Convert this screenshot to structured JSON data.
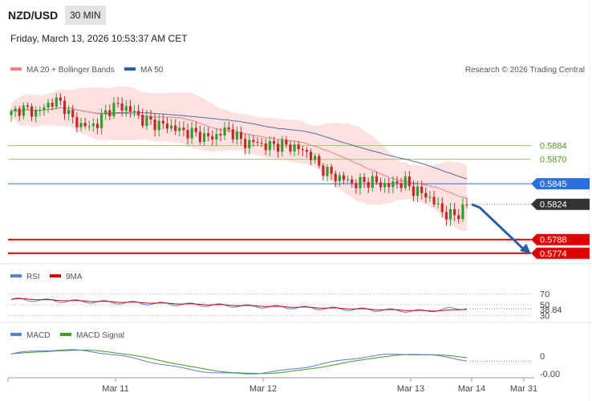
{
  "header": {
    "pair": "NZD/USD",
    "timeframe": "30 MIN",
    "datetime": "Friday, March 13, 2026 10:53:37 AM CET"
  },
  "legend": {
    "ma20": "MA 20 + Bollinger Bands",
    "ma50": "MA 50",
    "copyright": "Research © 2026 Trading Central",
    "rsi": "RSI",
    "rsi_ma": "9MA",
    "macd": "MACD",
    "macd_signal": "MACD Signal"
  },
  "colors": {
    "ma20": "#f08080",
    "ma50": "#4a6fa5",
    "bollinger_fill": "#fde0e0",
    "candle_up": "#2e9e2e",
    "candle_down": "#c62828",
    "resistance": "#9acd6a",
    "current": "#2b6fe0",
    "support": "#e00000",
    "arrow": "#2a5ea8",
    "rsi": "#5b7fd1",
    "rsi_ma": "#cc0000",
    "macd": "#5b7fd1",
    "macd_signal": "#3c9e1e"
  },
  "chart_data": [
    {
      "type": "candlestick",
      "title": "NZD/USD 30 MIN",
      "x_tick_labels": [
        "Mar 11",
        "Mar 12",
        "Mar 13",
        "Mar 14",
        "Mar 31"
      ],
      "levels": [
        {
          "value": 0.5884,
          "label": "0.5884",
          "kind": "resistance"
        },
        {
          "value": 0.587,
          "label": "0.5870",
          "kind": "resistance"
        },
        {
          "value": 0.5845,
          "label": "0.5845",
          "kind": "pivot"
        },
        {
          "value": 0.5824,
          "label": "0.5824",
          "kind": "last"
        },
        {
          "value": 0.5788,
          "label": "0.5788",
          "kind": "support"
        },
        {
          "value": 0.5774,
          "label": "0.5774",
          "kind": "support"
        }
      ],
      "ylim": [
        0.5764,
        0.5954
      ],
      "close_path": [
        0.5916,
        0.5922,
        0.592,
        0.5918,
        0.5925,
        0.593,
        0.5925,
        0.591,
        0.5905,
        0.5903,
        0.5908,
        0.592,
        0.5925,
        0.5923,
        0.5918,
        0.591,
        0.5908,
        0.5905,
        0.5904,
        0.59,
        0.5898,
        0.5896,
        0.5893,
        0.5892,
        0.5898,
        0.59,
        0.589,
        0.5886,
        0.5888,
        0.5883,
        0.5885,
        0.5884,
        0.5883,
        0.588,
        0.5876,
        0.5864,
        0.5857,
        0.5852,
        0.585,
        0.5845,
        0.5846,
        0.5848,
        0.5845,
        0.5843,
        0.5846,
        0.5846,
        0.5838,
        0.5835,
        0.5829,
        0.5818,
        0.5812,
        0.5814,
        0.5824
      ]
    },
    {
      "type": "line",
      "series": [
        {
          "name": "RSI"
        },
        {
          "name": "9MA"
        }
      ],
      "y_tick_labels": [
        "70",
        "50",
        "30"
      ],
      "last_value": "38.84"
    },
    {
      "type": "line",
      "series": [
        {
          "name": "MACD"
        },
        {
          "name": "MACD Signal"
        }
      ],
      "y_tick_labels": [
        "0"
      ],
      "last_value": "-0.00"
    }
  ]
}
